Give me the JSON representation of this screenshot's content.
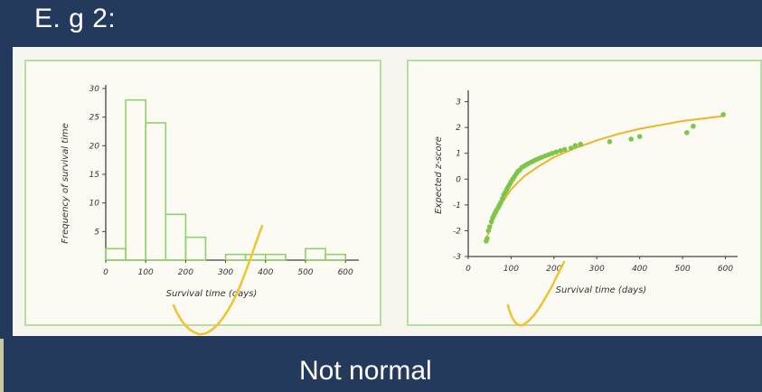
{
  "slide": {
    "title": "E. g 2:",
    "conclusion": "Not normal"
  },
  "colors": {
    "background": "#243a5c",
    "panel": "#f6f6ef",
    "bars": "#8fd16a",
    "points": "#7cc64a",
    "curve": "#f0b429",
    "annotation": "#f2c230"
  },
  "chart_data": [
    {
      "type": "bar",
      "title": "",
      "xlabel": "Survival time (days)",
      "ylabel": "Frequency of survival time",
      "xlim": [
        0,
        620
      ],
      "ylim": [
        0,
        30
      ],
      "xticks": [
        0,
        100,
        200,
        300,
        400,
        500,
        600
      ],
      "yticks": [
        5,
        10,
        15,
        20,
        25,
        30
      ],
      "bins": [
        {
          "from": 0,
          "to": 50,
          "value": 2
        },
        {
          "from": 50,
          "to": 100,
          "value": 28
        },
        {
          "from": 100,
          "to": 150,
          "value": 24
        },
        {
          "from": 150,
          "to": 200,
          "value": 8
        },
        {
          "from": 200,
          "to": 250,
          "value": 4
        },
        {
          "from": 250,
          "to": 300,
          "value": 0
        },
        {
          "from": 300,
          "to": 350,
          "value": 1
        },
        {
          "from": 350,
          "to": 400,
          "value": 1
        },
        {
          "from": 400,
          "to": 450,
          "value": 1
        },
        {
          "from": 450,
          "to": 500,
          "value": 0
        },
        {
          "from": 500,
          "to": 550,
          "value": 2
        },
        {
          "from": 550,
          "to": 600,
          "value": 1
        }
      ]
    },
    {
      "type": "scatter",
      "title": "",
      "xlabel": "Survival time (days)",
      "ylabel": "Expected z-score",
      "xlim": [
        0,
        620
      ],
      "ylim": [
        -3,
        3.3
      ],
      "xticks": [
        0,
        100,
        200,
        300,
        400,
        500,
        600
      ],
      "yticks": [
        -3,
        -2,
        -1,
        0,
        1,
        2,
        3
      ],
      "points": [
        [
          42,
          -2.4
        ],
        [
          44,
          -2.3
        ],
        [
          47,
          -2.0
        ],
        [
          50,
          -1.85
        ],
        [
          54,
          -1.65
        ],
        [
          57,
          -1.5
        ],
        [
          60,
          -1.4
        ],
        [
          63,
          -1.3
        ],
        [
          66,
          -1.2
        ],
        [
          70,
          -1.1
        ],
        [
          73,
          -1.0
        ],
        [
          76,
          -0.9
        ],
        [
          80,
          -0.75
        ],
        [
          83,
          -0.6
        ],
        [
          87,
          -0.5
        ],
        [
          90,
          -0.4
        ],
        [
          93,
          -0.3
        ],
        [
          97,
          -0.2
        ],
        [
          100,
          -0.1
        ],
        [
          104,
          0.0
        ],
        [
          108,
          0.1
        ],
        [
          112,
          0.2
        ],
        [
          116,
          0.3
        ],
        [
          120,
          0.35
        ],
        [
          125,
          0.45
        ],
        [
          130,
          0.5
        ],
        [
          135,
          0.55
        ],
        [
          140,
          0.6
        ],
        [
          146,
          0.65
        ],
        [
          152,
          0.7
        ],
        [
          158,
          0.75
        ],
        [
          165,
          0.8
        ],
        [
          172,
          0.85
        ],
        [
          180,
          0.9
        ],
        [
          188,
          0.95
        ],
        [
          196,
          1.0
        ],
        [
          205,
          1.05
        ],
        [
          215,
          1.1
        ],
        [
          225,
          1.15
        ],
        [
          240,
          1.2
        ],
        [
          250,
          1.3
        ],
        [
          262,
          1.35
        ],
        [
          330,
          1.45
        ],
        [
          380,
          1.55
        ],
        [
          400,
          1.65
        ],
        [
          510,
          1.8
        ],
        [
          525,
          2.05
        ],
        [
          595,
          2.5
        ]
      ],
      "curve": [
        [
          40,
          -2.4
        ],
        [
          60,
          -1.5
        ],
        [
          80,
          -0.9
        ],
        [
          100,
          -0.4
        ],
        [
          130,
          0.1
        ],
        [
          160,
          0.45
        ],
        [
          200,
          0.85
        ],
        [
          250,
          1.2
        ],
        [
          300,
          1.5
        ],
        [
          350,
          1.75
        ],
        [
          400,
          1.95
        ],
        [
          450,
          2.1
        ],
        [
          500,
          2.25
        ],
        [
          550,
          2.35
        ],
        [
          600,
          2.45
        ]
      ]
    }
  ]
}
